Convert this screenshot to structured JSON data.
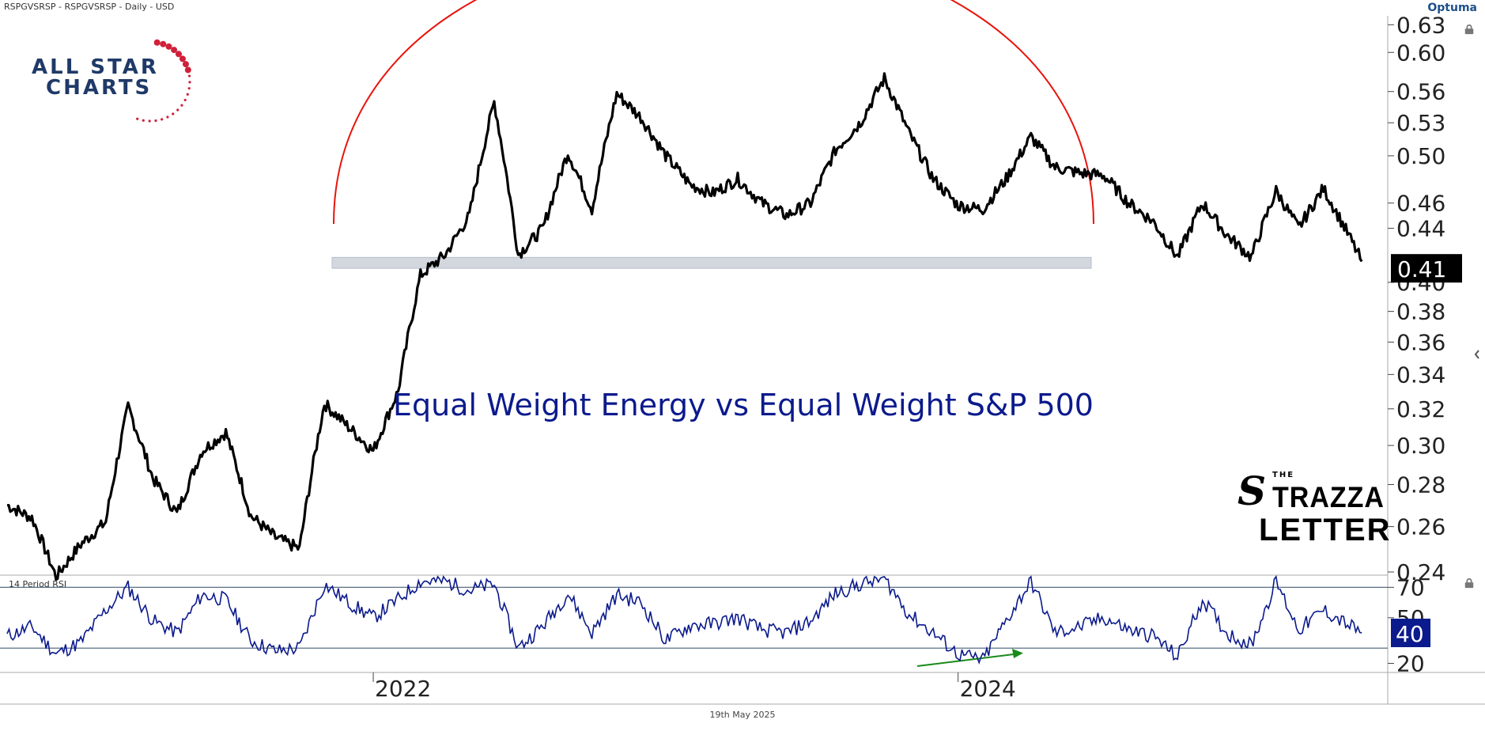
{
  "header": {
    "title": "RSPGVSRSP - RSPGVSRSP - Daily - USD",
    "brand": "Optuma"
  },
  "footer": {
    "date": "19th May 2025"
  },
  "logos": {
    "allstar_line1": "ALL STAR",
    "allstar_line2": "CHARTS",
    "strazza_the": "THE",
    "strazza_s": "S",
    "strazza_line1": "TRAZZA",
    "strazza_line2": "LETTER"
  },
  "icons": [
    "lock-icon",
    "lock-icon",
    "chevron-left-icon"
  ],
  "colors": {
    "price_line": "#000000",
    "arc": "#e8140c",
    "rsi_line": "#0b1a8c",
    "title": "#0b1a8c",
    "arrow": "#1a8a1a",
    "support_band": "#d3d7de"
  },
  "chart_data": [
    {
      "type": "line",
      "scale": "log",
      "title": "Equal Weight Energy vs Equal Weight S&P 500",
      "ylim": [
        0.24,
        0.64
      ],
      "y_ticks": [
        "0.63",
        "0.60",
        "0.56",
        "0.53",
        "0.50",
        "0.46",
        "0.44",
        "0.40",
        "0.38",
        "0.36",
        "0.34",
        "0.32",
        "0.30",
        "0.28",
        "0.26",
        "0.24"
      ],
      "x_ticks": [
        "2022",
        "2024"
      ],
      "last_value_label": "0.41",
      "support_zone": [
        0.41,
        0.418
      ],
      "series": [
        {
          "x": [
            "2020-10-01",
            "2020-11-01",
            "2020-12-01",
            "2021-01-01",
            "2021-02-01",
            "2021-03-01",
            "2021-04-01",
            "2021-05-01",
            "2021-06-01",
            "2021-07-01",
            "2021-08-01",
            "2021-09-01",
            "2021-10-01",
            "2021-11-01",
            "2021-12-01",
            "2022-01-01",
            "2022-02-01",
            "2022-03-01",
            "2022-04-01",
            "2022-05-01",
            "2022-06-01",
            "2022-07-01",
            "2022-08-01",
            "2022-09-01",
            "2022-10-01",
            "2022-11-01",
            "2022-12-01",
            "2023-01-01",
            "2023-02-01",
            "2023-03-01",
            "2023-04-01",
            "2023-05-01",
            "2023-06-01",
            "2023-07-01",
            "2023-08-01",
            "2023-09-01",
            "2023-10-01",
            "2023-11-01",
            "2023-12-01",
            "2024-01-01",
            "2024-02-01",
            "2024-03-01",
            "2024-04-01",
            "2024-05-01",
            "2024-06-01",
            "2024-07-01",
            "2024-08-01",
            "2024-09-01",
            "2024-10-01",
            "2024-11-01",
            "2024-12-01",
            "2025-01-01",
            "2025-02-01",
            "2025-03-01",
            "2025-04-01",
            "2025-05-19"
          ],
          "values": [
            0.27,
            0.264,
            0.238,
            0.252,
            0.262,
            0.321,
            0.283,
            0.266,
            0.297,
            0.307,
            0.265,
            0.255,
            0.25,
            0.323,
            0.31,
            0.297,
            0.33,
            0.405,
            0.42,
            0.45,
            0.55,
            0.42,
            0.44,
            0.503,
            0.455,
            0.558,
            0.535,
            0.5,
            0.475,
            0.468,
            0.48,
            0.46,
            0.45,
            0.46,
            0.505,
            0.53,
            0.573,
            0.52,
            0.48,
            0.458,
            0.455,
            0.48,
            0.517,
            0.49,
            0.485,
            0.483,
            0.46,
            0.445,
            0.418,
            0.46,
            0.435,
            0.418,
            0.47,
            0.44,
            0.472,
            0.415
          ]
        }
      ]
    },
    {
      "type": "line",
      "title": "14 Period RSI",
      "ylim": [
        14,
        78
      ],
      "y_ticks": [
        "70",
        "50",
        "20"
      ],
      "reference_lines": [
        70,
        30
      ],
      "last_value_label": "40",
      "series": [
        {
          "x": [
            "2020-10-01",
            "2020-11-01",
            "2020-12-01",
            "2021-01-01",
            "2021-02-01",
            "2021-03-01",
            "2021-04-01",
            "2021-05-01",
            "2021-06-01",
            "2021-07-01",
            "2021-08-01",
            "2021-09-01",
            "2021-10-01",
            "2021-11-01",
            "2021-12-01",
            "2022-01-01",
            "2022-02-01",
            "2022-03-01",
            "2022-04-01",
            "2022-05-01",
            "2022-06-01",
            "2022-07-01",
            "2022-08-01",
            "2022-09-01",
            "2022-10-01",
            "2022-11-01",
            "2022-12-01",
            "2023-01-01",
            "2023-02-01",
            "2023-03-01",
            "2023-04-01",
            "2023-05-01",
            "2023-06-01",
            "2023-07-01",
            "2023-08-01",
            "2023-09-01",
            "2023-10-01",
            "2023-11-01",
            "2023-12-01",
            "2024-01-01",
            "2024-02-01",
            "2024-03-01",
            "2024-04-01",
            "2024-05-01",
            "2024-06-01",
            "2024-07-01",
            "2024-08-01",
            "2024-09-01",
            "2024-10-01",
            "2024-11-01",
            "2024-12-01",
            "2025-01-01",
            "2025-02-01",
            "2025-03-01",
            "2025-04-01",
            "2025-05-19"
          ],
          "values": [
            38,
            44,
            26,
            34,
            55,
            70,
            48,
            40,
            65,
            62,
            35,
            28,
            30,
            72,
            60,
            50,
            62,
            74,
            74,
            68,
            72,
            30,
            45,
            66,
            40,
            65,
            60,
            35,
            45,
            46,
            50,
            42,
            40,
            48,
            66,
            72,
            76,
            52,
            40,
            26,
            22,
            48,
            74,
            40,
            44,
            50,
            42,
            38,
            24,
            62,
            40,
            32,
            74,
            42,
            55,
            40
          ]
        }
      ]
    }
  ]
}
